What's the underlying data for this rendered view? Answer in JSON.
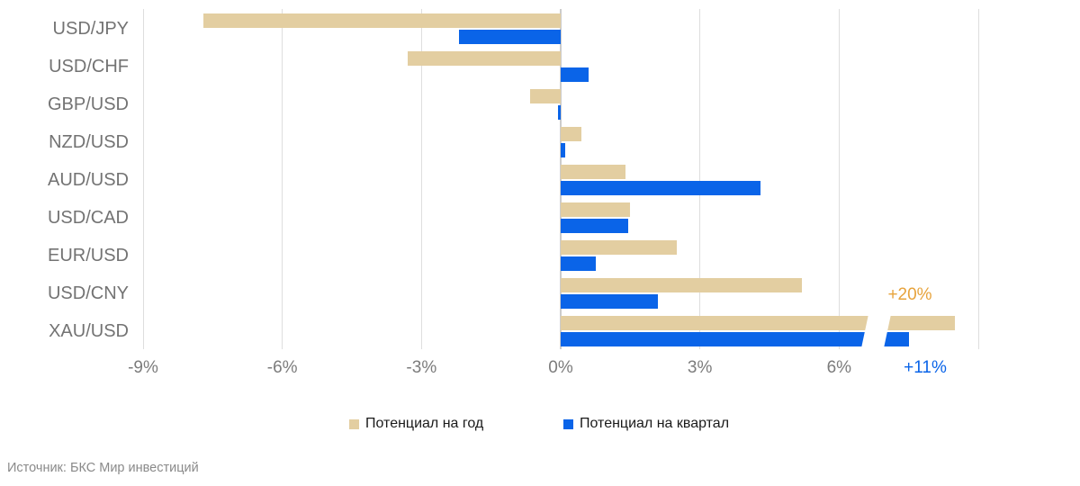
{
  "chart_data": {
    "type": "bar",
    "orientation": "horizontal",
    "title": "",
    "xlabel": "",
    "ylabel": "",
    "xlim": [
      -9,
      9
    ],
    "grid": "vertical",
    "gridline_values": [
      -9,
      -6,
      -3,
      0,
      3,
      6,
      9
    ],
    "x_ticks": [
      {
        "value": -9,
        "label": "-9%"
      },
      {
        "value": -6,
        "label": "-6%"
      },
      {
        "value": -3,
        "label": "-3%"
      },
      {
        "value": 0,
        "label": "0%"
      },
      {
        "value": 3,
        "label": "3%"
      },
      {
        "value": 6,
        "label": "6%"
      }
    ],
    "series_meta": {
      "year": {
        "name": "Потенциал на год",
        "color": "#E3CEA1"
      },
      "quarter": {
        "name": "Потенциал на квартал",
        "color": "#0A64E8"
      }
    },
    "rows": [
      {
        "label": "USD/JPY",
        "year": -7.7,
        "quarter": -2.2
      },
      {
        "label": "USD/CHF",
        "year": -3.3,
        "quarter": 0.6
      },
      {
        "label": "GBP/USD",
        "year": -0.65,
        "quarter": -0.05
      },
      {
        "label": "NZD/USD",
        "year": 0.45,
        "quarter": 0.1
      },
      {
        "label": "AUD/USD",
        "year": 1.4,
        "quarter": 4.3
      },
      {
        "label": "USD/CAD",
        "year": 1.5,
        "quarter": 1.45
      },
      {
        "label": "EUR/USD",
        "year": 2.5,
        "quarter": 0.75
      },
      {
        "label": "USD/CNY",
        "year": 5.2,
        "quarter": 2.1
      },
      {
        "label": "XAU/USD",
        "year": 20,
        "quarter": 11,
        "year_display": 8.5,
        "quarter_display": 7.5,
        "axis_break": true
      }
    ],
    "annotations": [
      {
        "id": "xau-year-label",
        "text": "+20%",
        "color": "#E7A33C"
      },
      {
        "id": "xau-quarter-label",
        "text": "+11%",
        "color": "#0A64E8"
      }
    ],
    "legend": [
      {
        "label": "Потенциал на год",
        "color": "#E3CEA1"
      },
      {
        "label": "Потенциал на квартал",
        "color": "#0A64E8"
      }
    ],
    "legend_position": "bottom"
  },
  "footer": {
    "source": "Источник: БКС Мир инвестиций"
  }
}
